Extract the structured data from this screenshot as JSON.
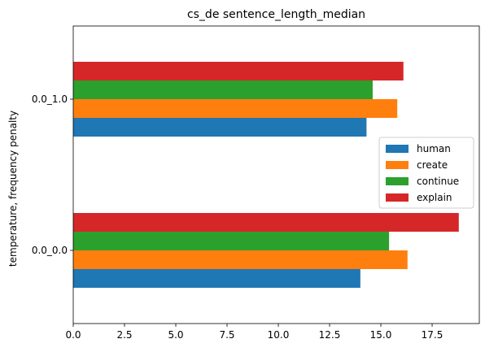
{
  "chart_data": {
    "type": "bar",
    "orientation": "horizontal",
    "title": "cs_de sentence_length_median",
    "xlabel": "",
    "ylabel": "temperature, frequency penalty",
    "categories": [
      "0.0_0.0",
      "0.0_1.0"
    ],
    "xlim": [
      0,
      19.8
    ],
    "xticks": [
      "0.0",
      "2.5",
      "5.0",
      "7.5",
      "10.0",
      "12.5",
      "15.0",
      "17.5"
    ],
    "grid": false,
    "legend_position": "center-right",
    "series": [
      {
        "name": "human",
        "color": "#1f77b4",
        "values": [
          14.0,
          14.3
        ]
      },
      {
        "name": "create",
        "color": "#ff7f0e",
        "values": [
          16.3,
          15.8
        ]
      },
      {
        "name": "continue",
        "color": "#2ca02c",
        "values": [
          15.4,
          14.6
        ]
      },
      {
        "name": "explain",
        "color": "#d62728",
        "values": [
          18.8,
          16.1
        ]
      }
    ]
  }
}
